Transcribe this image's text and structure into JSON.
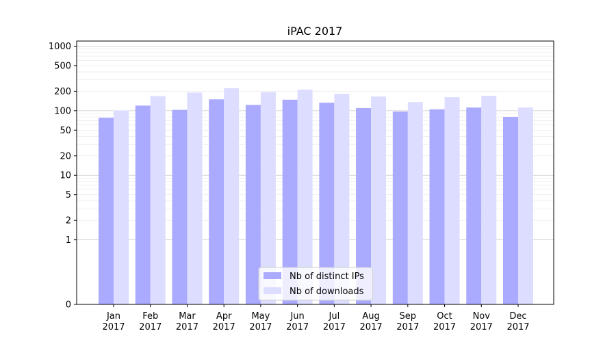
{
  "chart_data": {
    "type": "bar",
    "title": "iPAC 2017",
    "xlabel": "",
    "ylabel": "",
    "categories": [
      [
        "Jan",
        "2017"
      ],
      [
        "Feb",
        "2017"
      ],
      [
        "Mar",
        "2017"
      ],
      [
        "Apr",
        "2017"
      ],
      [
        "May",
        "2017"
      ],
      [
        "Jun",
        "2017"
      ],
      [
        "Jul",
        "2017"
      ],
      [
        "Aug",
        "2017"
      ],
      [
        "Sep",
        "2017"
      ],
      [
        "Oct",
        "2017"
      ],
      [
        "Nov",
        "2017"
      ],
      [
        "Dec",
        "2017"
      ]
    ],
    "series": [
      {
        "name": "Nb of distinct IPs",
        "color": "#aaaaff",
        "values": [
          78,
          120,
          103,
          150,
          123,
          148,
          133,
          110,
          97,
          105,
          112,
          80
        ]
      },
      {
        "name": "Nb of downloads",
        "color": "#ddddff",
        "values": [
          101,
          168,
          191,
          223,
          195,
          212,
          183,
          166,
          136,
          162,
          170,
          112
        ]
      }
    ],
    "y_scale": "symlog",
    "ylim": [
      0,
      1200
    ],
    "yticks": [
      0,
      1,
      2,
      5,
      10,
      20,
      50,
      100,
      200,
      500,
      1000
    ],
    "grid": true,
    "legend_position": "bottom-center"
  }
}
